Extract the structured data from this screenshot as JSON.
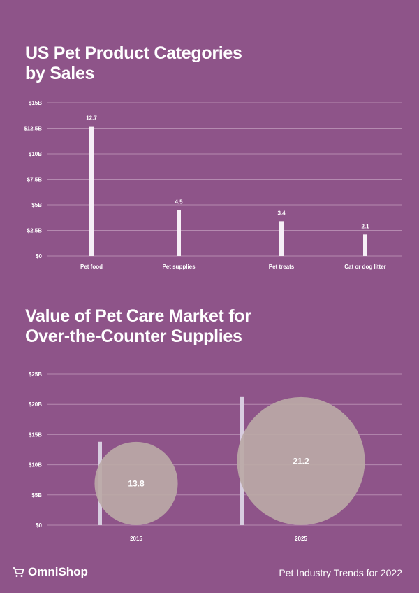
{
  "colors": {
    "background": "#8e5489",
    "bar": "#f6eff6",
    "bubble": "#bba9a6",
    "grid": "#b58ab0"
  },
  "chart_data": [
    {
      "type": "bar",
      "title": "US Pet Product Categories\nby Sales",
      "categories": [
        "Pet food",
        "Pet supplies",
        "Pet treats",
        "Cat or dog litter"
      ],
      "values": [
        12.7,
        4.5,
        3.4,
        2.1
      ],
      "value_labels": [
        "12.7",
        "4.5",
        "3.4",
        "2.1"
      ],
      "ylim": [
        0,
        15
      ],
      "yticks": [
        0,
        2.5,
        5,
        7.5,
        10,
        12.5,
        15
      ],
      "ytick_labels": [
        "$0",
        "$2.5B",
        "$5B",
        "$7.5B",
        "$10B",
        "$12.5B",
        "$15B"
      ],
      "grid": true
    },
    {
      "type": "bar",
      "title": "Value of Pet Care Market for\nOver-the-Counter Supplies",
      "categories": [
        "2015",
        "2025"
      ],
      "values": [
        13.8,
        21.2
      ],
      "value_labels": [
        "13.8",
        "21.2"
      ],
      "ylim": [
        0,
        25
      ],
      "yticks": [
        0,
        5,
        10,
        15,
        20,
        25
      ],
      "ytick_labels": [
        "$0",
        "$5B",
        "$10B",
        "$15B",
        "$20B",
        "$25B"
      ],
      "grid": true
    }
  ],
  "footer": {
    "brand": "OmniShop",
    "brand_icon": "shopping-cart-icon",
    "note": "Pet Industry Trends for 2022"
  }
}
